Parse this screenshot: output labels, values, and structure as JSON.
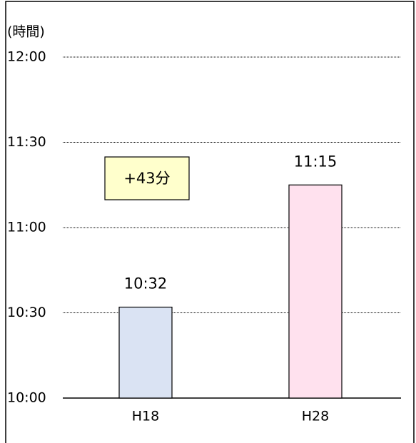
{
  "chart_data": {
    "type": "bar",
    "y_axis_label": "(時間)",
    "categories": [
      "H18",
      "H28"
    ],
    "values": [
      632,
      675
    ],
    "value_labels": [
      "10:32",
      "11:15"
    ],
    "colors": [
      "#dae3f3",
      "#ffe1ee"
    ],
    "ylim": [
      600,
      720
    ],
    "yticks": [
      {
        "value": 600,
        "label": "10:00"
      },
      {
        "value": 630,
        "label": "10:30"
      },
      {
        "value": 660,
        "label": "11:00"
      },
      {
        "value": 690,
        "label": "11:30"
      },
      {
        "value": 720,
        "label": "12:00"
      }
    ],
    "grid": true,
    "annotation": "+43分"
  }
}
